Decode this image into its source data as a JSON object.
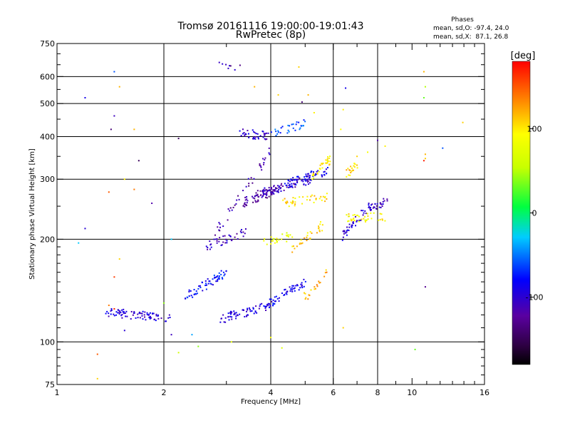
{
  "chart_data": {
    "type": "scatter",
    "title": "Tromsø 20161116 19:00:00-19:01:43",
    "subtitle": "RwPretec (8p)",
    "stats": {
      "heading": "Phases",
      "line_o": "mean, sd,O: -97.4, 24.0",
      "line_x": "mean, sd,X:  87.1, 26.8"
    },
    "xlabel": "Frequency [MHz]",
    "ylabel": "Stationary phase Virtual Height [km]",
    "x_scale": "log",
    "y_scale": "log",
    "xlim": [
      1,
      16
    ],
    "ylim": [
      75,
      750
    ],
    "x_ticks": [
      1,
      2,
      4,
      6,
      8,
      10,
      16
    ],
    "x_tick_labels": [
      "1",
      "2",
      "4",
      "6",
      "8",
      "10",
      "16"
    ],
    "x_minor_ticks": [
      3,
      5,
      7,
      9,
      11,
      12,
      13,
      14,
      15
    ],
    "y_ticks": [
      75,
      100,
      200,
      300,
      400,
      500,
      600,
      750
    ],
    "y_tick_labels": [
      "75",
      "100",
      "200",
      "300",
      "400",
      "500",
      "600",
      "750"
    ],
    "x_gridlines": [
      2,
      4,
      6,
      8
    ],
    "y_gridlines": [
      100,
      200,
      300,
      400,
      500,
      600
    ],
    "grid": true,
    "colorbar": {
      "label": "[deg]",
      "range": [
        -180,
        180
      ],
      "ticks": [
        100,
        0,
        -100
      ],
      "tick_labels": [
        "100",
        "0",
        "-100"
      ],
      "colormap": "rainbow"
    },
    "traces": [
      {
        "x0": 1.35,
        "x1": 2.1,
        "y0": 122,
        "y1": 118,
        "phase": -100,
        "n": 80
      },
      {
        "x0": 2.3,
        "x1": 3.0,
        "y0": 135,
        "y1": 160,
        "phase": -80,
        "n": 60
      },
      {
        "x0": 2.9,
        "x1": 4.0,
        "y0": 117,
        "y1": 128,
        "phase": -95,
        "n": 70
      },
      {
        "x0": 4.0,
        "x1": 5.0,
        "y0": 130,
        "y1": 150,
        "phase": -90,
        "n": 50
      },
      {
        "x0": 2.6,
        "x1": 3.4,
        "y0": 190,
        "y1": 210,
        "phase": -110,
        "n": 40
      },
      {
        "x0": 3.3,
        "x1": 4.2,
        "y0": 255,
        "y1": 280,
        "phase": -120,
        "n": 70
      },
      {
        "x0": 3.6,
        "x1": 5.2,
        "y0": 270,
        "y1": 300,
        "phase": -110,
        "n": 70
      },
      {
        "x0": 4.4,
        "x1": 5.8,
        "y0": 290,
        "y1": 320,
        "phase": -90,
        "n": 60
      },
      {
        "x0": 3.3,
        "x1": 4.0,
        "y0": 410,
        "y1": 400,
        "phase": -105,
        "n": 40
      },
      {
        "x0": 4.0,
        "x1": 5.0,
        "y0": 405,
        "y1": 440,
        "phase": -60,
        "n": 30
      },
      {
        "x0": 4.3,
        "x1": 5.8,
        "y0": 255,
        "y1": 265,
        "phase": 105,
        "n": 40
      },
      {
        "x0": 5.2,
        "x1": 5.9,
        "y0": 300,
        "y1": 345,
        "phase": 100,
        "n": 35
      },
      {
        "x0": 3.8,
        "x1": 4.6,
        "y0": 195,
        "y1": 205,
        "phase": 80,
        "n": 25
      },
      {
        "x0": 4.6,
        "x1": 5.6,
        "y0": 185,
        "y1": 220,
        "phase": 110,
        "n": 30
      },
      {
        "x0": 5.0,
        "x1": 5.8,
        "y0": 135,
        "y1": 160,
        "phase": 125,
        "n": 20
      },
      {
        "x0": 6.2,
        "x1": 7.6,
        "y0": 200,
        "y1": 250,
        "phase": -100,
        "n": 40
      },
      {
        "x0": 6.5,
        "x1": 8.5,
        "y0": 232,
        "y1": 232,
        "phase": 95,
        "n": 40
      },
      {
        "x0": 7.6,
        "x1": 8.5,
        "y0": 245,
        "y1": 260,
        "phase": -110,
        "n": 30
      },
      {
        "x0": 6.5,
        "x1": 7.0,
        "y0": 310,
        "y1": 330,
        "phase": 110,
        "n": 20
      },
      {
        "x0": 2.8,
        "x1": 3.3,
        "y0": 640,
        "y1": 645,
        "phase": -120,
        "n": 8
      },
      {
        "x0": 2.8,
        "x1": 4.0,
        "y0": 210,
        "y1": 360,
        "phase": -120,
        "n": 40
      }
    ],
    "isolated_points": [
      {
        "x": 1.2,
        "y": 520,
        "phase": -90
      },
      {
        "x": 1.45,
        "y": 620,
        "phase": -60
      },
      {
        "x": 1.5,
        "y": 560,
        "phase": 120
      },
      {
        "x": 1.45,
        "y": 460,
        "phase": -110
      },
      {
        "x": 1.42,
        "y": 420,
        "phase": -140
      },
      {
        "x": 1.65,
        "y": 420,
        "phase": 120
      },
      {
        "x": 1.7,
        "y": 340,
        "phase": -150
      },
      {
        "x": 1.55,
        "y": 300,
        "phase": 100
      },
      {
        "x": 1.4,
        "y": 275,
        "phase": 150
      },
      {
        "x": 1.65,
        "y": 280,
        "phase": 140
      },
      {
        "x": 1.2,
        "y": 215,
        "phase": -100
      },
      {
        "x": 1.15,
        "y": 195,
        "phase": -30
      },
      {
        "x": 1.5,
        "y": 175,
        "phase": 110
      },
      {
        "x": 1.45,
        "y": 155,
        "phase": 160
      },
      {
        "x": 1.45,
        "y": 125,
        "phase": 170
      },
      {
        "x": 1.4,
        "y": 128,
        "phase": 140
      },
      {
        "x": 1.55,
        "y": 108,
        "phase": -100
      },
      {
        "x": 1.3,
        "y": 92,
        "phase": 150
      },
      {
        "x": 1.3,
        "y": 78,
        "phase": 110
      },
      {
        "x": 1.85,
        "y": 255,
        "phase": -120
      },
      {
        "x": 2.2,
        "y": 395,
        "phase": -150
      },
      {
        "x": 2.0,
        "y": 130,
        "phase": 40
      },
      {
        "x": 2.1,
        "y": 105,
        "phase": -110
      },
      {
        "x": 2.4,
        "y": 105,
        "phase": -40
      },
      {
        "x": 2.2,
        "y": 93,
        "phase": 60
      },
      {
        "x": 2.1,
        "y": 200,
        "phase": -30
      },
      {
        "x": 2.5,
        "y": 97,
        "phase": 40
      },
      {
        "x": 3.1,
        "y": 100,
        "phase": 80
      },
      {
        "x": 3.6,
        "y": 560,
        "phase": 120
      },
      {
        "x": 4.2,
        "y": 530,
        "phase": 110
      },
      {
        "x": 4.9,
        "y": 505,
        "phase": -140
      },
      {
        "x": 5.1,
        "y": 530,
        "phase": 120
      },
      {
        "x": 4.8,
        "y": 640,
        "phase": 110
      },
      {
        "x": 5.3,
        "y": 470,
        "phase": 100
      },
      {
        "x": 4.0,
        "y": 103,
        "phase": 90
      },
      {
        "x": 4.3,
        "y": 96,
        "phase": 70
      },
      {
        "x": 6.5,
        "y": 555,
        "phase": -90
      },
      {
        "x": 6.4,
        "y": 480,
        "phase": 100
      },
      {
        "x": 6.3,
        "y": 420,
        "phase": 95
      },
      {
        "x": 6.4,
        "y": 110,
        "phase": 110
      },
      {
        "x": 8.0,
        "y": 390,
        "phase": -120
      },
      {
        "x": 8.4,
        "y": 375,
        "phase": 100
      },
      {
        "x": 7.0,
        "y": 350,
        "phase": 110
      },
      {
        "x": 7.5,
        "y": 360,
        "phase": 90
      },
      {
        "x": 10.8,
        "y": 620,
        "phase": 120
      },
      {
        "x": 10.9,
        "y": 560,
        "phase": 50
      },
      {
        "x": 10.8,
        "y": 520,
        "phase": 30
      },
      {
        "x": 10.9,
        "y": 355,
        "phase": 120
      },
      {
        "x": 10.9,
        "y": 345,
        "phase": 110
      },
      {
        "x": 10.8,
        "y": 340,
        "phase": 170
      },
      {
        "x": 12.2,
        "y": 370,
        "phase": -60
      },
      {
        "x": 13.9,
        "y": 440,
        "phase": 110
      },
      {
        "x": 10.9,
        "y": 145,
        "phase": -130
      },
      {
        "x": 10.2,
        "y": 95,
        "phase": 30
      }
    ]
  }
}
